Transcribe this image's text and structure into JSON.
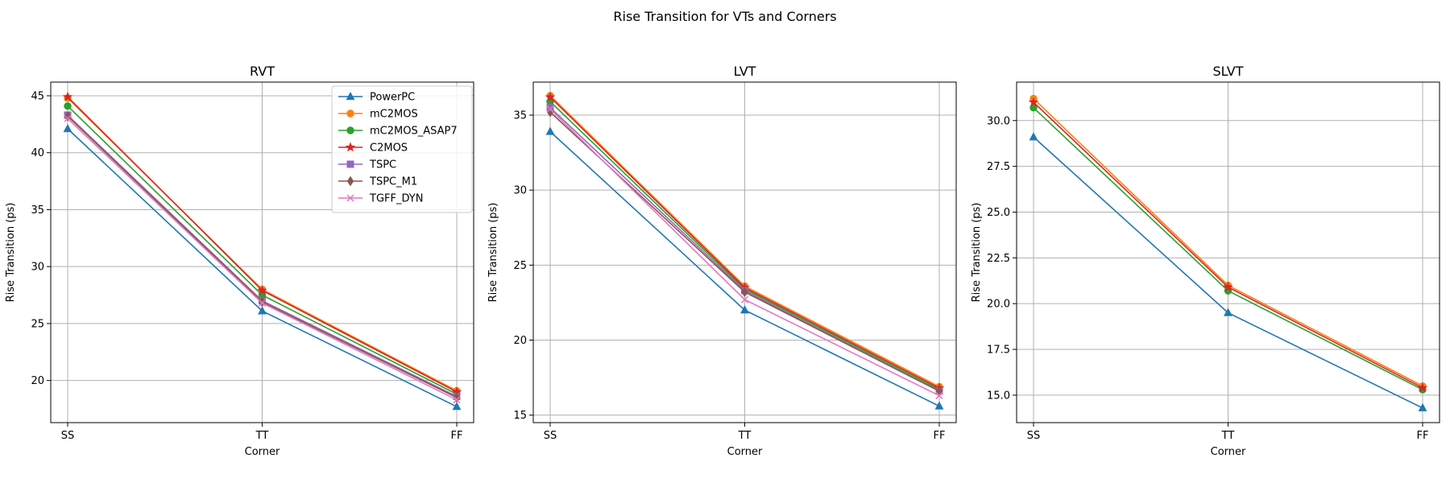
{
  "figure_title": "Rise Transition for VTs and Corners",
  "colors": {
    "PowerPC": "#1f77b4",
    "mC2MOS": "#ff7f0e",
    "mC2MOS_ASAP7": "#2ca02c",
    "C2MOS": "#d62728",
    "TSPC": "#9467bd",
    "TSPC_M1": "#8c564b",
    "TGFF_DYN": "#e377c2"
  },
  "chart_data": [
    {
      "type": "line",
      "title": "RVT",
      "xlabel": "Corner",
      "ylabel": "Rise Transition (ps)",
      "categories": [
        "SS",
        "TT",
        "FF"
      ],
      "ylim": [
        16.3,
        46.2
      ],
      "yticks": [
        20,
        25,
        30,
        35,
        40,
        45
      ],
      "grid": true,
      "legend": "top-right",
      "series": [
        {
          "name": "PowerPC",
          "marker": "triangle",
          "values": [
            42.1,
            26.1,
            17.7
          ]
        },
        {
          "name": "mC2MOS",
          "marker": "circle",
          "values": [
            44.8,
            28.0,
            19.1
          ]
        },
        {
          "name": "mC2MOS_ASAP7",
          "marker": "circle",
          "values": [
            44.1,
            27.5,
            18.8
          ]
        },
        {
          "name": "C2MOS",
          "marker": "star",
          "values": [
            44.9,
            27.9,
            19.0
          ]
        },
        {
          "name": "TSPC",
          "marker": "square",
          "values": [
            43.3,
            27.0,
            18.6
          ]
        },
        {
          "name": "TSPC_M1",
          "marker": "diamond",
          "values": [
            43.2,
            26.9,
            18.5
          ]
        },
        {
          "name": "TGFF_DYN",
          "marker": "x",
          "values": [
            43.0,
            26.8,
            18.3
          ]
        }
      ]
    },
    {
      "type": "line",
      "title": "LVT",
      "xlabel": "Corner",
      "ylabel": "Rise Transition (ps)",
      "categories": [
        "SS",
        "TT",
        "FF"
      ],
      "ylim": [
        14.5,
        37.2
      ],
      "yticks": [
        15,
        20,
        25,
        30,
        35
      ],
      "grid": true,
      "series": [
        {
          "name": "PowerPC",
          "marker": "triangle",
          "values": [
            33.9,
            22.0,
            15.6
          ]
        },
        {
          "name": "mC2MOS",
          "marker": "circle",
          "values": [
            36.3,
            23.6,
            16.9
          ]
        },
        {
          "name": "mC2MOS_ASAP7",
          "marker": "circle",
          "values": [
            35.9,
            23.4,
            16.7
          ]
        },
        {
          "name": "C2MOS",
          "marker": "star",
          "values": [
            36.2,
            23.5,
            16.8
          ]
        },
        {
          "name": "TSPC",
          "marker": "square",
          "values": [
            35.5,
            23.3,
            16.6
          ]
        },
        {
          "name": "TSPC_M1",
          "marker": "diamond",
          "values": [
            35.2,
            23.2,
            16.6
          ]
        },
        {
          "name": "TGFF_DYN",
          "marker": "x",
          "values": [
            35.4,
            22.7,
            16.3
          ]
        }
      ]
    },
    {
      "type": "line",
      "title": "SLVT",
      "xlabel": "Corner",
      "ylabel": "Rise Transition (ps)",
      "categories": [
        "SS",
        "TT",
        "FF"
      ],
      "ylim": [
        13.5,
        32.1
      ],
      "yticks": [
        15.0,
        17.5,
        20.0,
        22.5,
        25.0,
        27.5,
        30.0
      ],
      "ytick_labels": [
        "15.0",
        "17.5",
        "20.0",
        "22.5",
        "25.0",
        "27.5",
        "30.0"
      ],
      "grid": true,
      "series": [
        {
          "name": "PowerPC",
          "marker": "triangle",
          "values": [
            29.1,
            19.5,
            14.3
          ]
        },
        {
          "name": "mC2MOS",
          "marker": "circle",
          "values": [
            31.2,
            21.0,
            15.5
          ]
        },
        {
          "name": "mC2MOS_ASAP7",
          "marker": "circle",
          "values": [
            30.7,
            20.7,
            15.3
          ]
        },
        {
          "name": "C2MOS",
          "marker": "star",
          "values": [
            31.0,
            20.9,
            15.4
          ]
        }
      ]
    }
  ]
}
